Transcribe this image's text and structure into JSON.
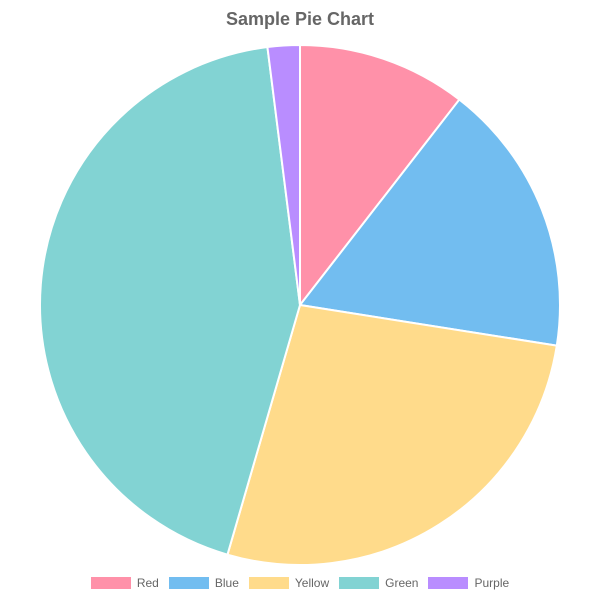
{
  "chart_data": {
    "type": "pie",
    "title": "Sample Pie Chart",
    "categories": [
      "Red",
      "Blue",
      "Yellow",
      "Green",
      "Purple"
    ],
    "values": [
      10.5,
      17,
      27,
      43.5,
      2
    ],
    "colors": [
      "#ff91a9",
      "#72bdf0",
      "#ffdb8b",
      "#82d3d3",
      "#b98dff"
    ],
    "legend_position": "bottom"
  }
}
